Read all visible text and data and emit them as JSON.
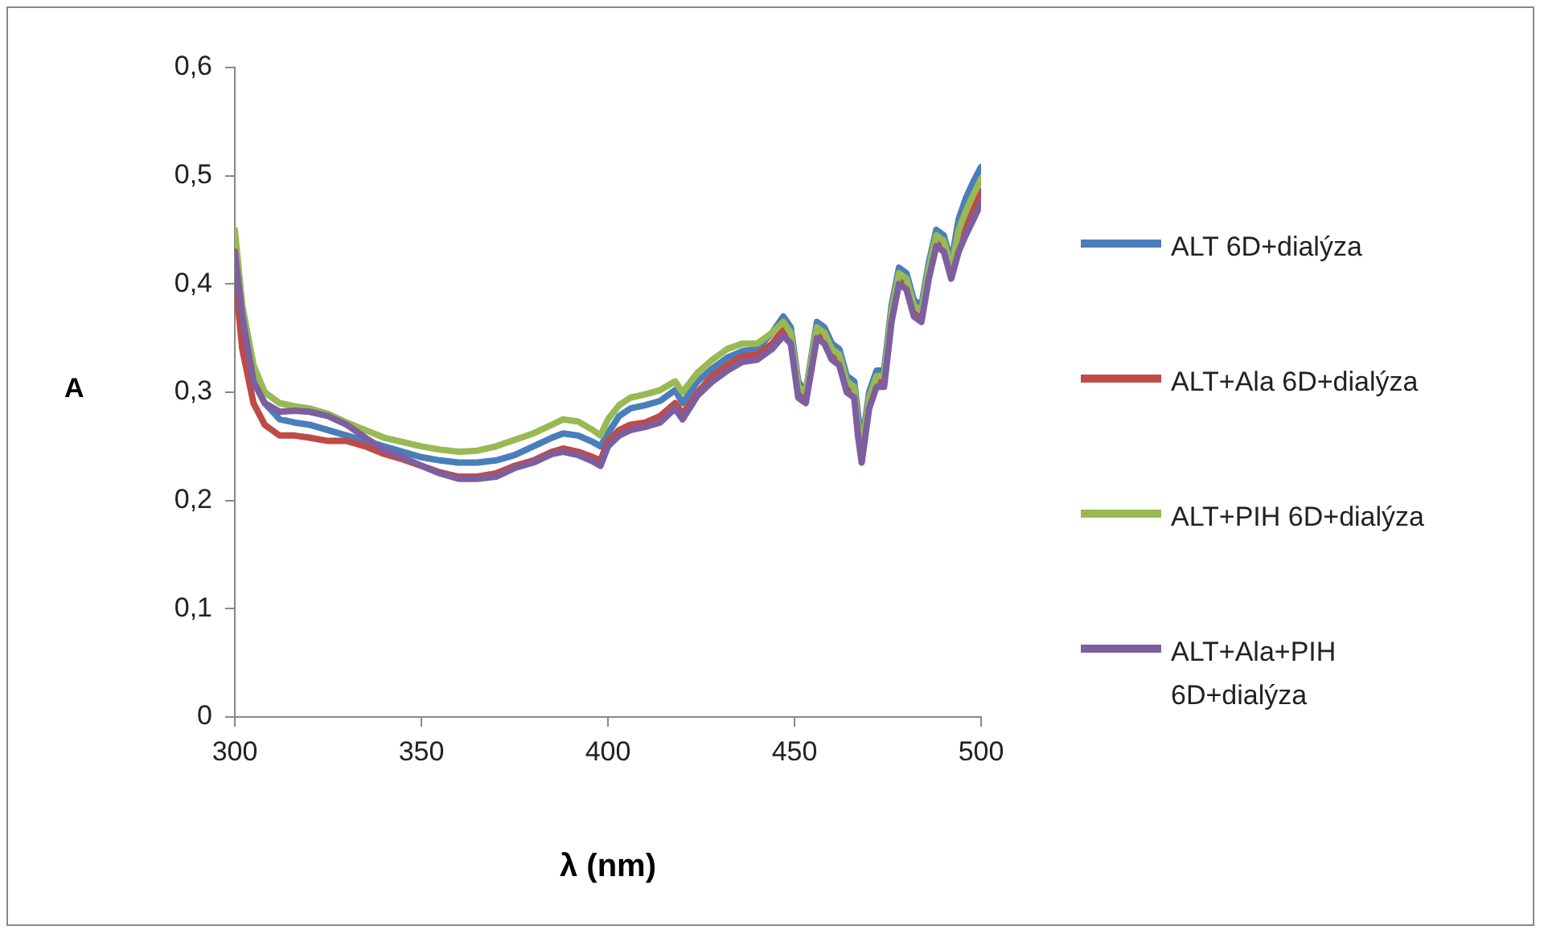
{
  "chart_data": {
    "type": "line",
    "xlabel": "λ (nm)",
    "ylabel": "A",
    "x": [
      300,
      302,
      305,
      308,
      312,
      316,
      320,
      325,
      330,
      335,
      340,
      345,
      350,
      355,
      360,
      365,
      370,
      375,
      380,
      385,
      388,
      392,
      396,
      398,
      400,
      403,
      406,
      410,
      414,
      418,
      420,
      424,
      428,
      432,
      436,
      440,
      444,
      447,
      449,
      451,
      453,
      456,
      458,
      460,
      462,
      464,
      466,
      467,
      468,
      470,
      472,
      474,
      476,
      478,
      480,
      482,
      484,
      486,
      488,
      490,
      492,
      494,
      496,
      498,
      500
    ],
    "series": [
      {
        "name": "ALT 6D+dialýza",
        "color": "#4a7ebb",
        "values": [
          0.43,
          0.36,
          0.31,
          0.29,
          0.275,
          0.272,
          0.27,
          0.265,
          0.26,
          0.255,
          0.25,
          0.245,
          0.24,
          0.237,
          0.235,
          0.235,
          0.237,
          0.242,
          0.25,
          0.258,
          0.262,
          0.26,
          0.254,
          0.25,
          0.262,
          0.278,
          0.285,
          0.288,
          0.292,
          0.302,
          0.29,
          0.31,
          0.322,
          0.332,
          0.338,
          0.34,
          0.355,
          0.37,
          0.36,
          0.31,
          0.3,
          0.365,
          0.36,
          0.345,
          0.34,
          0.315,
          0.31,
          0.28,
          0.25,
          0.3,
          0.32,
          0.32,
          0.38,
          0.415,
          0.41,
          0.385,
          0.38,
          0.42,
          0.45,
          0.445,
          0.42,
          0.46,
          0.48,
          0.495,
          0.508
        ]
      },
      {
        "name": "ALT+Ala 6D+dialýza",
        "color": "#be4b48",
        "values": [
          0.41,
          0.34,
          0.29,
          0.27,
          0.26,
          0.26,
          0.258,
          0.255,
          0.255,
          0.25,
          0.243,
          0.238,
          0.232,
          0.226,
          0.222,
          0.222,
          0.225,
          0.232,
          0.237,
          0.245,
          0.248,
          0.245,
          0.24,
          0.237,
          0.255,
          0.265,
          0.27,
          0.272,
          0.278,
          0.29,
          0.28,
          0.3,
          0.315,
          0.325,
          0.333,
          0.335,
          0.345,
          0.358,
          0.35,
          0.3,
          0.295,
          0.355,
          0.35,
          0.335,
          0.33,
          0.305,
          0.3,
          0.27,
          0.24,
          0.29,
          0.31,
          0.31,
          0.37,
          0.405,
          0.4,
          0.375,
          0.37,
          0.41,
          0.44,
          0.435,
          0.41,
          0.44,
          0.457,
          0.471,
          0.486
        ]
      },
      {
        "name": "ALT+PIH 6D+dialýza",
        "color": "#98b954",
        "values": [
          0.45,
          0.38,
          0.325,
          0.3,
          0.29,
          0.287,
          0.285,
          0.28,
          0.272,
          0.265,
          0.258,
          0.254,
          0.25,
          0.247,
          0.245,
          0.246,
          0.25,
          0.256,
          0.262,
          0.27,
          0.275,
          0.273,
          0.265,
          0.26,
          0.275,
          0.288,
          0.295,
          0.298,
          0.302,
          0.31,
          0.3,
          0.318,
          0.33,
          0.34,
          0.345,
          0.345,
          0.355,
          0.365,
          0.355,
          0.305,
          0.3,
          0.36,
          0.355,
          0.34,
          0.335,
          0.31,
          0.305,
          0.27,
          0.245,
          0.295,
          0.315,
          0.315,
          0.375,
          0.41,
          0.405,
          0.38,
          0.375,
          0.415,
          0.445,
          0.44,
          0.415,
          0.45,
          0.468,
          0.483,
          0.497
        ]
      },
      {
        "name": "ALT+Ala+PIH 6D+dialýza",
        "color": "#7d5fa0",
        "values": [
          0.43,
          0.37,
          0.31,
          0.29,
          0.282,
          0.283,
          0.282,
          0.278,
          0.27,
          0.258,
          0.247,
          0.24,
          0.232,
          0.225,
          0.22,
          0.22,
          0.222,
          0.23,
          0.235,
          0.243,
          0.245,
          0.242,
          0.236,
          0.232,
          0.25,
          0.26,
          0.265,
          0.268,
          0.272,
          0.285,
          0.275,
          0.297,
          0.31,
          0.32,
          0.328,
          0.33,
          0.34,
          0.352,
          0.345,
          0.295,
          0.29,
          0.35,
          0.345,
          0.33,
          0.325,
          0.3,
          0.295,
          0.26,
          0.235,
          0.285,
          0.305,
          0.305,
          0.365,
          0.4,
          0.395,
          0.37,
          0.365,
          0.405,
          0.435,
          0.43,
          0.405,
          0.43,
          0.446,
          0.46,
          0.475
        ]
      }
    ],
    "xlim": [
      300,
      500
    ],
    "xticks": [
      300,
      350,
      400,
      450,
      500
    ],
    "ylim": [
      0,
      0.6
    ],
    "yticks": [
      0,
      {
        "value": 0.1,
        "label": "0,1"
      },
      {
        "value": 0.2,
        "label": "0,2"
      },
      {
        "value": 0.3,
        "label": "0,3"
      },
      {
        "value": 0.4,
        "label": "0,4"
      },
      {
        "value": 0.5,
        "label": "0,5"
      },
      {
        "value": 0.6,
        "label": "0,6"
      }
    ],
    "grid": false,
    "legend": "right",
    "marker": "none",
    "line_style": "solid"
  }
}
